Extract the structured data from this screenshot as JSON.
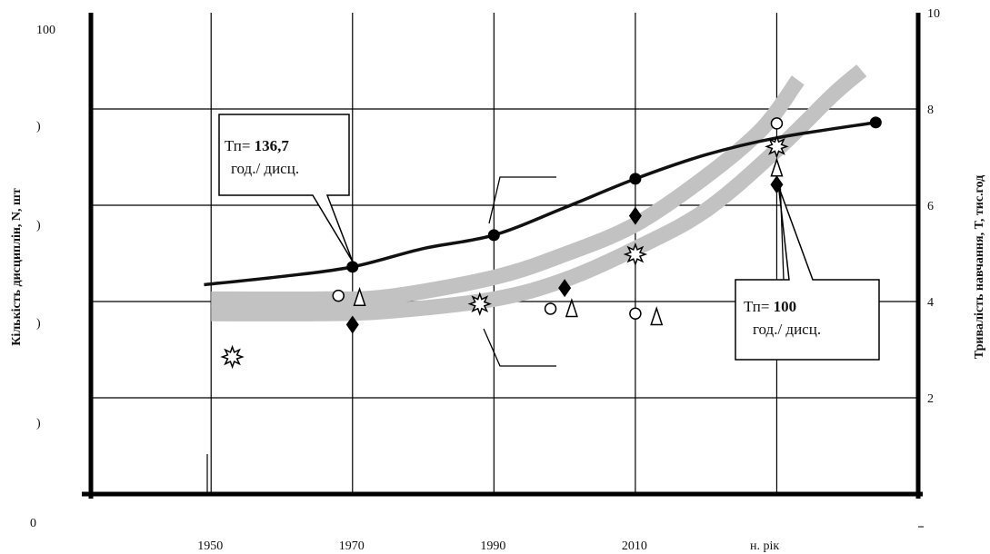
{
  "chart_data": {
    "type": "line",
    "title": "",
    "x_axis": {
      "label": "н. рік",
      "ticks": [
        1950,
        1970,
        1990,
        2010
      ],
      "range": [
        1933,
        2050
      ]
    },
    "y_left": {
      "label": "Кількість дисциплін,  N, шт",
      "tick_labels": [
        "100",
        ")",
        ")",
        ")",
        ")",
        ")",
        "0"
      ]
    },
    "y_right": {
      "label": "Тривалість навчання, T, тис.год",
      "ticks": [
        2,
        4,
        6,
        8,
        10
      ],
      "range": [
        0,
        10
      ]
    },
    "grid": true,
    "series": [
      {
        "marker": "filled-circle",
        "points": [
          [
            1970,
            4.72
          ],
          [
            1990,
            5.38
          ],
          [
            2010,
            6.55
          ],
          [
            2044,
            7.72
          ]
        ],
        "line": [
          [
            1949,
            4.35
          ],
          [
            1960,
            4.52
          ],
          [
            1970,
            4.72
          ],
          [
            1980,
            5.1
          ],
          [
            1990,
            5.38
          ],
          [
            2000,
            5.95
          ],
          [
            2010,
            6.55
          ],
          [
            2020,
            7.05
          ],
          [
            2030,
            7.4
          ],
          [
            2044,
            7.72
          ]
        ]
      },
      {
        "marker": "open-circle",
        "points": [
          [
            1968,
            4.12
          ],
          [
            1998,
            3.85
          ],
          [
            2010,
            3.75
          ],
          [
            2030,
            7.7
          ]
        ]
      },
      {
        "marker": "open-triangle",
        "points": [
          [
            1971,
            4.07
          ],
          [
            2001,
            3.84
          ],
          [
            2013,
            3.67
          ],
          [
            2030,
            6.76
          ]
        ]
      },
      {
        "marker": "filled-diamond",
        "points": [
          [
            1970,
            3.52
          ],
          [
            2000,
            4.28
          ],
          [
            2010,
            5.78
          ],
          [
            2030,
            6.43
          ]
        ]
      },
      {
        "marker": "star",
        "points": [
          [
            1953,
            2.85
          ],
          [
            1988,
            3.95
          ],
          [
            2010,
            4.98
          ],
          [
            2030,
            7.22
          ]
        ]
      },
      {
        "marker": "band",
        "line": [
          [
            1950,
            4.05
          ],
          [
            1965,
            4.05
          ],
          [
            1975,
            4.1
          ],
          [
            1990,
            4.5
          ],
          [
            2000,
            4.98
          ],
          [
            2010,
            5.6
          ],
          [
            2020,
            6.6
          ],
          [
            2028,
            7.6
          ],
          [
            2033,
            8.6
          ]
        ]
      },
      {
        "marker": "band",
        "line": [
          [
            1950,
            3.75
          ],
          [
            1965,
            3.75
          ],
          [
            1975,
            3.8
          ],
          [
            1990,
            4.05
          ],
          [
            2000,
            4.45
          ],
          [
            2010,
            5.1
          ],
          [
            2020,
            5.9
          ],
          [
            2030,
            7.15
          ],
          [
            2038,
            8.3
          ],
          [
            2042,
            8.8
          ]
        ]
      }
    ],
    "annotations": [
      {
        "line1_prefix": "Тп= ",
        "line1_value": "136,7",
        "line2": "год./ дисц.",
        "target": [
          1970,
          4.72
        ]
      },
      {
        "line1_prefix": "Тп= ",
        "line1_value": "100",
        "line2": "год./ дисц.",
        "target": [
          2030,
          6.43
        ]
      }
    ]
  }
}
